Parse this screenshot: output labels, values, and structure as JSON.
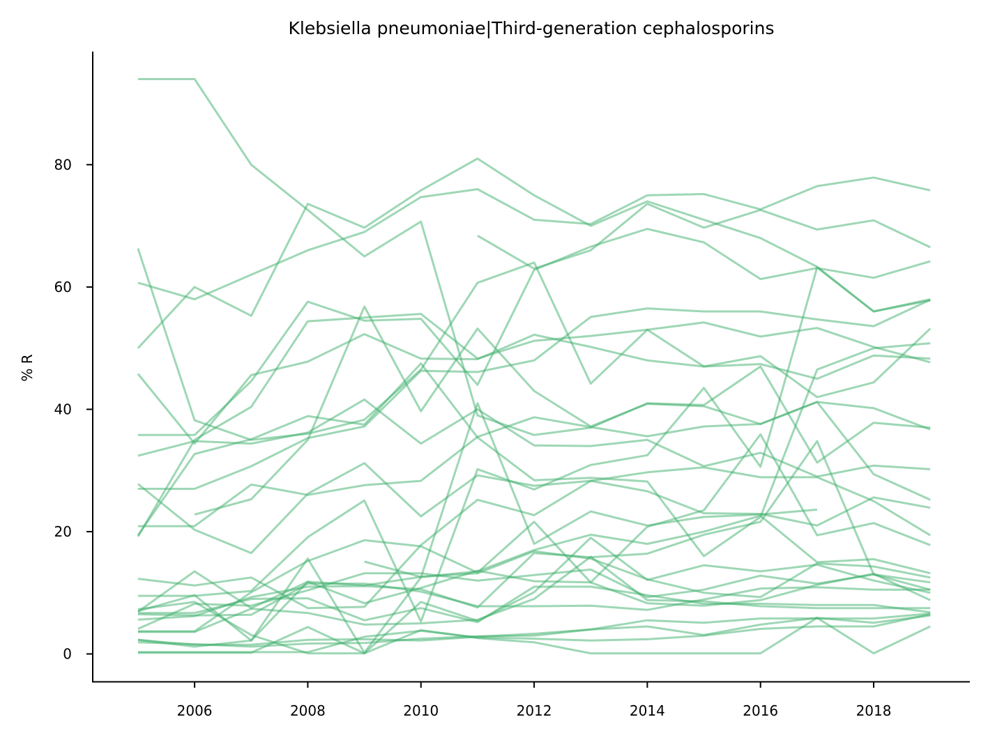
{
  "chart_data": {
    "type": "line",
    "title": "Klebsiella pneumoniae|Third-generation cephalosporins",
    "xlabel": "",
    "ylabel": "% R",
    "xlim": [
      2004.2,
      2019.7
    ],
    "ylim": [
      -4.5,
      98.5
    ],
    "xticks": [
      2006,
      2008,
      2010,
      2012,
      2014,
      2016,
      2018
    ],
    "yticks": [
      0,
      20,
      40,
      60,
      80
    ],
    "grid": false,
    "legend": "none",
    "line_color": "#3db06b",
    "line_opacity": 0.5,
    "series": [
      {
        "x": [
          2005,
          2006,
          2007,
          2008,
          2009,
          2010,
          2011,
          2012,
          2013,
          2014,
          2015,
          2016,
          2017,
          2018,
          2019
        ],
        "y": [
          94,
          94,
          80,
          72.6,
          65,
          70.7,
          39,
          35.8,
          37,
          41,
          40.7,
          47,
          31.3,
          37.8,
          37
        ]
      },
      {
        "x": [
          2005,
          2006,
          2007,
          2008,
          2009,
          2010,
          2011,
          2012,
          2013,
          2014,
          2015,
          2016,
          2017,
          2018,
          2019
        ],
        "y": [
          50,
          60,
          55.3,
          73.6,
          69.7,
          75.8,
          81,
          75,
          70,
          74,
          71,
          68,
          63.3,
          56,
          58
        ]
      },
      {
        "x": [
          2005,
          2006,
          2007,
          2008,
          2009,
          2010,
          2011,
          2012,
          2013,
          2014,
          2015,
          2016,
          2017,
          2018,
          2019
        ],
        "y": [
          60.7,
          58,
          62,
          66,
          69,
          74.7,
          76,
          71,
          70.3,
          75,
          75.2,
          72.7,
          76.5,
          77.9,
          75.8
        ]
      },
      {
        "x": [
          2005,
          2006,
          2007,
          2008,
          2009,
          2010,
          2011,
          2012,
          2013,
          2014,
          2015,
          2016,
          2017,
          2018,
          2019
        ],
        "y": [
          66.3,
          38.2,
          35,
          36,
          38.3,
          46.5,
          60.7,
          64,
          44.2,
          53,
          47,
          47.4,
          45,
          48.8,
          48.3
        ]
      },
      {
        "x": [
          2011,
          2012,
          2013,
          2014,
          2015,
          2016,
          2017,
          2018,
          2019
        ],
        "y": [
          68.4,
          63,
          66,
          73.6,
          69.7,
          72.6,
          69.4,
          70.9,
          66.5
        ]
      },
      {
        "x": [
          2005,
          2006,
          2007,
          2008,
          2009,
          2010,
          2011,
          2012,
          2013,
          2014,
          2015,
          2016,
          2017,
          2018,
          2019
        ],
        "y": [
          45.8,
          34.4,
          45.6,
          47.8,
          52.3,
          48.3,
          48.2,
          52.2,
          50.2,
          48,
          47,
          48.7,
          42,
          44.4,
          53.2
        ]
      },
      {
        "x": [
          2005,
          2006,
          2007,
          2008,
          2009,
          2010,
          2011,
          2012,
          2013,
          2014,
          2015,
          2016,
          2017,
          2018,
          2019
        ],
        "y": [
          19.2,
          35,
          40.4,
          54.4,
          55,
          55.6,
          48.3,
          51.2,
          52,
          53,
          54.2,
          51.9,
          53.3,
          50.2,
          47.7
        ]
      },
      {
        "x": [
          2005,
          2006,
          2007,
          2008,
          2009,
          2010,
          2011,
          2012,
          2013,
          2014,
          2015,
          2016,
          2017,
          2018,
          2019
        ],
        "y": [
          35.8,
          35.8,
          44.6,
          57.6,
          54.5,
          54.8,
          44,
          62.8,
          66.6,
          69.5,
          67.3,
          61.3,
          63.1,
          61.5,
          64.2
        ]
      },
      {
        "x": [
          2005,
          2006,
          2007,
          2008,
          2009,
          2010,
          2011,
          2012,
          2013,
          2014,
          2015,
          2016,
          2017,
          2018,
          2019
        ],
        "y": [
          32.4,
          34.8,
          34.4,
          36.2,
          41.6,
          34.4,
          40,
          34.1,
          34,
          35,
          30.7,
          32.9,
          29,
          30.8,
          30.2
        ]
      },
      {
        "x": [
          2005,
          2006,
          2007,
          2008,
          2009,
          2010,
          2011,
          2012,
          2013,
          2014,
          2015,
          2016,
          2017,
          2018,
          2019
        ],
        "y": [
          27.8,
          20.3,
          16.5,
          26.2,
          31.2,
          22.5,
          29.2,
          27.5,
          28.3,
          26.6,
          23,
          22.9,
          21,
          25.6,
          23.9
        ]
      },
      {
        "x": [
          2006,
          2007,
          2008,
          2009,
          2010,
          2011,
          2012,
          2013,
          2014,
          2015,
          2016,
          2017,
          2018,
          2019
        ],
        "y": [
          22.8,
          25.3,
          35,
          56.8,
          39.7,
          53.2,
          43,
          37.2,
          40.9,
          40.5,
          37.6,
          41.2,
          40.2,
          36.7
        ]
      },
      {
        "x": [
          2005,
          2006,
          2007,
          2008,
          2009,
          2010,
          2011,
          2012,
          2013,
          2014,
          2015,
          2016,
          2017,
          2018,
          2019
        ],
        "y": [
          27,
          27,
          30.7,
          35.3,
          37.2,
          46.3,
          46.1,
          48,
          55.1,
          56.5,
          56,
          56,
          54.7,
          53.6,
          57.9
        ]
      },
      {
        "x": [
          2005,
          2006,
          2007,
          2008,
          2009,
          2010,
          2011,
          2012,
          2013,
          2014,
          2015,
          2016,
          2017,
          2018,
          2019
        ],
        "y": [
          20.9,
          20.9,
          27.7,
          26,
          27.6,
          28.3,
          35.5,
          38.7,
          37.1,
          35.6,
          37.2,
          37.6,
          41.2,
          29.4,
          25.2
        ]
      },
      {
        "x": [
          2005,
          2006,
          2007,
          2008,
          2009,
          2010,
          2011,
          2012,
          2013,
          2014,
          2015,
          2016,
          2017,
          2018,
          2019
        ],
        "y": [
          19.4,
          32.7,
          35.1,
          38.9,
          37.5,
          47.5,
          35.4,
          28.4,
          28.8,
          28.2,
          16,
          22.4,
          46.5,
          50,
          50.8
        ]
      },
      {
        "x": [
          2005,
          2006,
          2007,
          2008,
          2009,
          2010,
          2011,
          2012,
          2013,
          2014,
          2015,
          2016,
          2017,
          2018,
          2019
        ],
        "y": [
          12.3,
          11.2,
          12.5,
          7.5,
          7.7,
          17.8,
          25.2,
          22.7,
          28.3,
          29.7,
          30.5,
          28.9,
          28.9,
          25,
          19.4
        ]
      },
      {
        "x": [
          2005,
          2006,
          2007,
          2008,
          2009,
          2010,
          2011,
          2012,
          2013,
          2014,
          2015,
          2016,
          2017,
          2018,
          2019
        ],
        "y": [
          9.5,
          9.5,
          10.3,
          19.1,
          25.1,
          5.3,
          30.2,
          26.9,
          30.9,
          32.5,
          43.5,
          30.6,
          63.2,
          56,
          57.8
        ]
      },
      {
        "x": [
          2005,
          2006,
          2007,
          2008,
          2009,
          2010,
          2011,
          2012,
          2013,
          2014,
          2015,
          2016,
          2017,
          2018,
          2019
        ],
        "y": [
          3.7,
          3.7,
          10.1,
          15.2,
          18.6,
          17.6,
          13.3,
          21.6,
          11.7,
          20.8,
          23.5,
          35.9,
          19.4,
          21.4,
          17.8
        ]
      },
      {
        "x": [
          2005,
          2006,
          2007,
          2008,
          2009,
          2010,
          2011,
          2012,
          2013,
          2014,
          2015,
          2016,
          2017,
          2018,
          2019
        ],
        "y": [
          7,
          9.6,
          2.2,
          15.6,
          0.2,
          12.5,
          41,
          18,
          23.3,
          21,
          22.4,
          22.8,
          23.6,
          null,
          null
        ]
      },
      {
        "x": [
          2005,
          2006,
          2007,
          2008,
          2009,
          2010,
          2011,
          2012,
          2013,
          2014,
          2015,
          2016,
          2017,
          2018,
          2019
        ],
        "y": [
          6.9,
          13.5,
          7.5,
          11.8,
          11.2,
          12.6,
          13.5,
          17,
          19.5,
          18,
          20,
          22.6,
          15,
          15.5,
          13.2
        ]
      },
      {
        "x": [
          2005,
          2006,
          2007,
          2008,
          2009,
          2010,
          2011,
          2012,
          2013,
          2014,
          2015,
          2016,
          2017,
          2018,
          2019
        ],
        "y": [
          5.6,
          6.2,
          9.3,
          11,
          11.1,
          10.6,
          7.6,
          16.5,
          15.8,
          16.4,
          19.5,
          21.6,
          34.8,
          13,
          10.5
        ]
      },
      {
        "x": [
          2005,
          2006,
          2007,
          2008,
          2009,
          2010,
          2011,
          2012,
          2013,
          2014,
          2015,
          2016,
          2017,
          2018,
          2019
        ],
        "y": [
          4.1,
          8.2,
          7.9,
          10.4,
          13.2,
          13.2,
          12,
          12.9,
          13.8,
          9.3,
          10.5,
          12.8,
          11.5,
          13,
          11.7
        ]
      },
      {
        "x": [
          2005,
          2006,
          2007,
          2008,
          2009,
          2010,
          2011,
          2012,
          2013,
          2014,
          2015,
          2016,
          2017,
          2018,
          2019
        ],
        "y": [
          2.3,
          1.2,
          2.2,
          11.8,
          8.3,
          10.8,
          13.6,
          11.9,
          11.7,
          8.3,
          7.9,
          8.8,
          11.3,
          13.1,
          8.8
        ]
      },
      {
        "x": [
          2009,
          2010,
          2011,
          2012,
          2013,
          2014,
          2015,
          2016,
          2017,
          2018,
          2019
        ],
        "y": [
          15.1,
          12.6,
          13.2,
          16.8,
          15.6,
          12.2,
          10,
          9.3,
          14.8,
          14.3,
          12.5
        ]
      },
      {
        "x": [
          2005,
          2006,
          2007,
          2008,
          2009,
          2010,
          2011,
          2012,
          2013,
          2014,
          2015,
          2016,
          2017,
          2018,
          2019
        ],
        "y": [
          6.5,
          6.3,
          6.4,
          11.5,
          11.5,
          10.2,
          7.8,
          7.8,
          7.9,
          7.2,
          8.9,
          10.7,
          10.9,
          10.5,
          10.5
        ]
      },
      {
        "x": [
          2005,
          2006,
          2007,
          2008,
          2009,
          2010,
          2011,
          2012,
          2013,
          2014,
          2015,
          2016,
          2017,
          2018,
          2019
        ],
        "y": [
          6.7,
          6.7,
          9,
          9.1,
          5.5,
          7.5,
          5.2,
          11,
          11,
          9.6,
          8.2,
          8.2,
          8,
          8,
          6.8
        ]
      },
      {
        "x": [
          2005,
          2006,
          2007,
          2008,
          2009,
          2010,
          2011,
          2012,
          2013,
          2014,
          2015,
          2016,
          2017,
          2018,
          2019
        ],
        "y": [
          3.6,
          3.6,
          7.4,
          6.7,
          4.8,
          5,
          5.6,
          9,
          15.9,
          8.8,
          8.6,
          7.8,
          7.5,
          7.5,
          7.5
        ]
      },
      {
        "x": [
          2005,
          2006,
          2007,
          2008,
          2009,
          2010,
          2011,
          2012,
          2013,
          2014,
          2015,
          2016,
          2017,
          2018,
          2019
        ],
        "y": [
          2.3,
          1.5,
          1.5,
          2.3,
          2.4,
          2.2,
          2.8,
          3.3,
          4,
          5.5,
          5.1,
          5.8,
          5.8,
          5.8,
          6.6
        ]
      },
      {
        "x": [
          2005,
          2006,
          2007,
          2008,
          2009,
          2010,
          2011,
          2012,
          2013,
          2014,
          2015,
          2016,
          2017,
          2018,
          2019
        ],
        "y": [
          1.9,
          1.6,
          1.2,
          1.7,
          1.8,
          2.5,
          2.9,
          3,
          4,
          4.5,
          3.1,
          4.8,
          5.9,
          5.1,
          6.3
        ]
      },
      {
        "x": [
          2005,
          2006,
          2007,
          2008,
          2009,
          2010,
          2011,
          2012,
          2013,
          2014,
          2015,
          2016,
          2017,
          2018,
          2019
        ],
        "y": [
          0.2,
          0.2,
          0.2,
          4.4,
          0.1,
          3.9,
          2.6,
          1.9,
          0.1,
          0.1,
          0.1,
          0.1,
          5.9,
          0.1,
          4.5
        ]
      },
      {
        "x": [
          2005,
          2006,
          2007,
          2008,
          2009,
          2010,
          2011,
          2012,
          2013,
          2014,
          2015,
          2016,
          2017,
          2018,
          2019
        ],
        "y": [
          0.3,
          0.3,
          0.3,
          0.3,
          2.8,
          3.8,
          2.7,
          2.5,
          2.2,
          2.4,
          3,
          4.1,
          4.5,
          4.5,
          6.5
        ]
      },
      {
        "x": [
          2005,
          2006,
          2007,
          2008,
          2009,
          2010,
          2011,
          2012,
          2013,
          2014,
          2015,
          2016,
          2017,
          2018,
          2019
        ],
        "y": [
          7.3,
          8.5,
          3.1,
          0.1,
          0.1,
          8.5,
          5.4,
          10.1,
          19,
          12.1,
          14.5,
          13.5,
          14.6,
          12,
          10
        ]
      }
    ]
  }
}
